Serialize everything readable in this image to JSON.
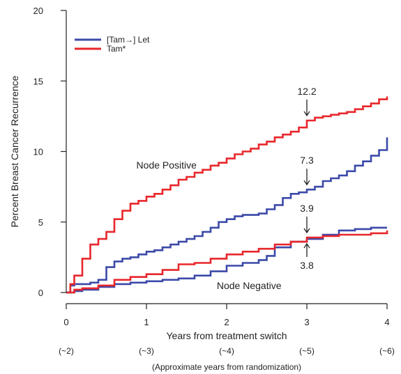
{
  "chart_data": {
    "type": "line",
    "xlabel": "Years from treatment switch",
    "ylabel": "Percent Breast Cancer Recurrence",
    "xlim": [
      0,
      4
    ],
    "ylim": [
      0,
      20
    ],
    "x_ticks": [
      0,
      1,
      2,
      3,
      4
    ],
    "y_ticks": [
      0,
      5,
      10,
      15,
      20
    ],
    "secondary_x_ticks": [
      "(~2)",
      "(~3)",
      "(~4)",
      "(~5)",
      "(~6)"
    ],
    "secondary_xlabel": "(Approximate years from randomization)",
    "legend_position": "top-left",
    "grid": false,
    "colors": {
      "let": "#3b49a8",
      "tam": "#e8262b"
    },
    "group_labels": [
      {
        "text": "Node Positive",
        "x": 1.25,
        "y": 8.8
      },
      {
        "text": "Node Negative",
        "x": 2.28,
        "y": 0.25
      }
    ],
    "annotations": [
      {
        "text": "12.2",
        "x": 3.0,
        "y": 12.2,
        "side": "above"
      },
      {
        "text": "7.3",
        "x": 3.0,
        "y": 7.3,
        "side": "above"
      },
      {
        "text": "3.9",
        "x": 3.0,
        "y": 3.9,
        "side": "above"
      },
      {
        "text": "3.8",
        "x": 3.0,
        "y": 3.8,
        "side": "below"
      }
    ],
    "series": [
      {
        "name": "[Tam→] Let",
        "group": "Node Positive",
        "color": "#3b49a8",
        "x": [
          0,
          0.05,
          0.1,
          0.2,
          0.3,
          0.4,
          0.5,
          0.6,
          0.7,
          0.8,
          0.9,
          1.0,
          1.1,
          1.2,
          1.3,
          1.4,
          1.5,
          1.6,
          1.7,
          1.8,
          1.9,
          2.0,
          2.1,
          2.2,
          2.3,
          2.4,
          2.5,
          2.6,
          2.7,
          2.8,
          2.9,
          3.0,
          3.1,
          3.2,
          3.3,
          3.4,
          3.5,
          3.6,
          3.7,
          3.8,
          3.9,
          4.0
        ],
        "y": [
          0,
          0.5,
          0.6,
          0.6,
          0.7,
          0.9,
          1.8,
          2.2,
          2.4,
          2.5,
          2.7,
          2.9,
          3.0,
          3.2,
          3.4,
          3.6,
          3.8,
          4.0,
          4.3,
          4.6,
          5.0,
          5.2,
          5.4,
          5.5,
          5.5,
          5.6,
          5.9,
          6.2,
          6.7,
          7.0,
          7.1,
          7.3,
          7.5,
          7.9,
          8.1,
          8.3,
          8.6,
          9.0,
          9.3,
          9.7,
          10.1,
          11.0
        ]
      },
      {
        "name": "Tam*",
        "group": "Node Positive",
        "color": "#e8262b",
        "x": [
          0,
          0.05,
          0.1,
          0.2,
          0.3,
          0.4,
          0.5,
          0.6,
          0.7,
          0.8,
          0.9,
          1.0,
          1.1,
          1.2,
          1.3,
          1.4,
          1.5,
          1.6,
          1.7,
          1.8,
          1.9,
          2.0,
          2.1,
          2.2,
          2.3,
          2.4,
          2.5,
          2.6,
          2.7,
          2.8,
          2.9,
          3.0,
          3.1,
          3.2,
          3.3,
          3.4,
          3.5,
          3.6,
          3.7,
          3.8,
          3.9,
          4.0
        ],
        "y": [
          0,
          0.6,
          1.2,
          2.4,
          3.4,
          3.8,
          4.3,
          5.2,
          5.8,
          6.3,
          6.5,
          6.8,
          7.0,
          7.3,
          7.6,
          8.0,
          8.2,
          8.5,
          8.7,
          9.0,
          9.2,
          9.5,
          9.8,
          10.0,
          10.2,
          10.5,
          10.7,
          11.0,
          11.2,
          11.4,
          11.7,
          12.2,
          12.4,
          12.5,
          12.6,
          12.7,
          12.8,
          13.0,
          13.2,
          13.4,
          13.7,
          13.9
        ]
      },
      {
        "name": "[Tam→] Let",
        "group": "Node Negative",
        "color": "#3b49a8",
        "x": [
          0,
          0.1,
          0.2,
          0.4,
          0.6,
          0.8,
          1.0,
          1.2,
          1.4,
          1.6,
          1.8,
          2.0,
          2.2,
          2.4,
          2.5,
          2.6,
          2.8,
          3.0,
          3.2,
          3.4,
          3.6,
          3.8,
          4.0
        ],
        "y": [
          0,
          0.1,
          0.2,
          0.4,
          0.6,
          0.7,
          0.8,
          0.9,
          1.0,
          1.2,
          1.5,
          1.9,
          2.1,
          2.3,
          2.6,
          3.2,
          3.6,
          3.8,
          4.1,
          4.4,
          4.5,
          4.6,
          4.6
        ]
      },
      {
        "name": "Tam*",
        "group": "Node Negative",
        "color": "#e8262b",
        "x": [
          0,
          0.1,
          0.2,
          0.4,
          0.6,
          0.8,
          1.0,
          1.2,
          1.4,
          1.6,
          1.8,
          2.0,
          2.2,
          2.4,
          2.6,
          2.8,
          3.0,
          3.2,
          3.4,
          3.6,
          3.8,
          4.0
        ],
        "y": [
          0,
          0.2,
          0.3,
          0.5,
          0.9,
          1.1,
          1.3,
          1.6,
          2.0,
          2.1,
          2.4,
          2.7,
          2.9,
          3.1,
          3.4,
          3.6,
          3.9,
          4.0,
          4.1,
          4.1,
          4.2,
          4.4
        ]
      }
    ],
    "legend": [
      {
        "label": "[Tam→] Let",
        "color": "#3b49a8"
      },
      {
        "label": "Tam*",
        "color": "#e8262b"
      }
    ]
  }
}
